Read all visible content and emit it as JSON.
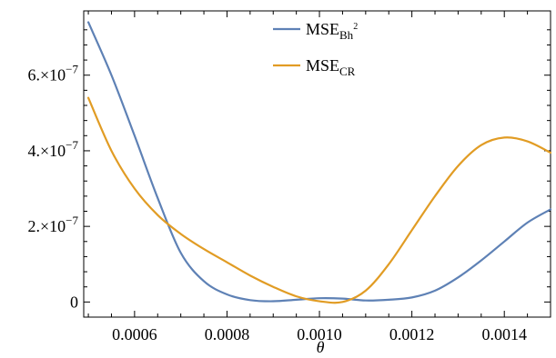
{
  "chart_data": {
    "type": "line",
    "title": "",
    "xlabel": "θ",
    "ylabel": "",
    "xlim": [
      0.00049,
      0.0015
    ],
    "ylim": [
      -4e-08,
      7.7e-07
    ],
    "grid": false,
    "legend_position": "top-center",
    "x_ticks": [
      {
        "value": 0.0006,
        "label": "0.0006"
      },
      {
        "value": 0.0008,
        "label": "0.0008"
      },
      {
        "value": 0.001,
        "label": "0.0010"
      },
      {
        "value": 0.0012,
        "label": "0.0012"
      },
      {
        "value": 0.0014,
        "label": "0.0014"
      }
    ],
    "y_ticks": [
      {
        "value": 0,
        "mantissa": "0",
        "exponent": ""
      },
      {
        "value": 2e-07,
        "mantissa": "2.×10",
        "exponent": "−7"
      },
      {
        "value": 4e-07,
        "mantissa": "4.×10",
        "exponent": "−7"
      },
      {
        "value": 6e-07,
        "mantissa": "6.×10",
        "exponent": "−7"
      }
    ],
    "series": [
      {
        "name_main": "MSE",
        "name_sub": "Bh",
        "name_sup": "2",
        "color": "#5e81b5",
        "x": [
          0.0005,
          0.00055,
          0.0006,
          0.00065,
          0.0007,
          0.00075,
          0.0008,
          0.00085,
          0.0009,
          0.00095,
          0.001,
          0.00105,
          0.0011,
          0.00115,
          0.0012,
          0.00125,
          0.0013,
          0.00135,
          0.0014,
          0.00145,
          0.0015
        ],
        "y": [
          7.4e-07,
          6e-07,
          4.4e-07,
          2.75e-07,
          1.3e-07,
          5.5e-08,
          2e-08,
          5e-09,
          2e-09,
          6e-09,
          1e-08,
          9e-09,
          4e-09,
          6e-09,
          1.2e-08,
          3e-08,
          6.5e-08,
          1.1e-07,
          1.6e-07,
          2.1e-07,
          2.45e-07
        ]
      },
      {
        "name_main": "MSE",
        "name_sub": "CR",
        "name_sup": "",
        "color": "#e19c24",
        "x": [
          0.0005,
          0.00055,
          0.0006,
          0.00065,
          0.0007,
          0.00075,
          0.0008,
          0.00085,
          0.0009,
          0.00095,
          0.001,
          0.00105,
          0.0011,
          0.00115,
          0.0012,
          0.00125,
          0.0013,
          0.00135,
          0.0014,
          0.00145,
          0.0015
        ],
        "y": [
          5.4e-07,
          4e-07,
          3e-07,
          2.3e-07,
          1.8e-07,
          1.4e-07,
          1.05e-07,
          7e-08,
          4e-08,
          1.5e-08,
          2e-09,
          0.0,
          3e-08,
          1e-07,
          1.9e-07,
          2.8e-07,
          3.6e-07,
          4.15e-07,
          4.35e-07,
          4.25e-07,
          3.95e-07
        ]
      }
    ]
  }
}
